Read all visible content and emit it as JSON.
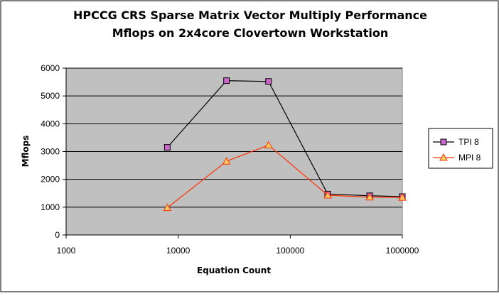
{
  "chart_data": {
    "type": "line",
    "title": "HPCCG CRS Sparse Matrix Vector Multiply Performance",
    "subtitle": "Mflops on 2x4core Clovertown Workstation",
    "xlabel": "Equation Count",
    "ylabel": "Mflops",
    "xscale": "log",
    "xlim": [
      1000,
      1000000
    ],
    "ylim": [
      0,
      6000
    ],
    "x_ticks": [
      "1000",
      "10000",
      "100000",
      "1000000"
    ],
    "y_ticks": [
      "0",
      "1000",
      "2000",
      "3000",
      "4000",
      "5000",
      "6000"
    ],
    "grid": "horizontal",
    "legend_position": "right",
    "plot_background": "#c0c0c0",
    "series": [
      {
        "name": "TPI 8",
        "marker": "square",
        "color": "#000000",
        "marker_fill": "#cc66cc",
        "x": [
          8000,
          27000,
          64000,
          216000,
          512000,
          1000000
        ],
        "y": [
          3150,
          5550,
          5520,
          1470,
          1410,
          1380
        ]
      },
      {
        "name": "MPI 8",
        "marker": "triangle",
        "color": "#ff3300",
        "marker_fill": "#ffcc66",
        "x": [
          8000,
          27000,
          64000,
          216000,
          512000,
          1000000
        ],
        "y": [
          980,
          2650,
          3230,
          1430,
          1360,
          1350
        ]
      }
    ]
  }
}
